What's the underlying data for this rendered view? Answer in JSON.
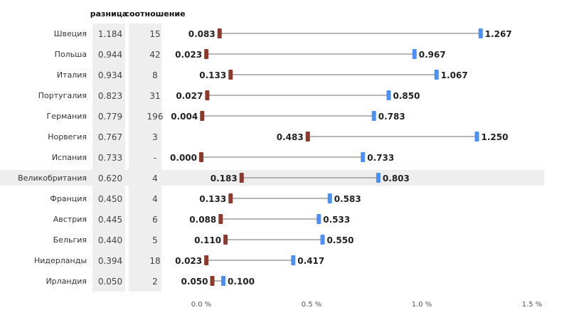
{
  "headers": {
    "diff": "разница",
    "ratio": "соотношение"
  },
  "colors": {
    "low": "#8b3a2e",
    "high": "#4f8ff0",
    "line": "#8a8a8a",
    "column_bg": "#eeeeee",
    "highlight_row": "#eeeeee"
  },
  "highlighted_row": "Великобритания",
  "chart_data": {
    "type": "dumbbell",
    "xlim": [
      0,
      1.5
    ],
    "ticks": [
      {
        "v": 0.0,
        "label": "0.0 %"
      },
      {
        "v": 0.5,
        "label": "0.5 %"
      },
      {
        "v": 1.0,
        "label": "1.0 %"
      },
      {
        "v": 1.5,
        "label": "1.5 %"
      }
    ],
    "rows": [
      {
        "country": "Швеция",
        "diff": "1.184",
        "ratio": "15",
        "low": 0.083,
        "low_label": "0.083",
        "high": 1.267,
        "high_label": "1.267"
      },
      {
        "country": "Польша",
        "diff": "0.944",
        "ratio": "42",
        "low": 0.023,
        "low_label": "0.023",
        "high": 0.967,
        "high_label": "0.967"
      },
      {
        "country": "Италия",
        "diff": "0.934",
        "ratio": "8",
        "low": 0.133,
        "low_label": "0.133",
        "high": 1.067,
        "high_label": "1.067"
      },
      {
        "country": "Португалия",
        "diff": "0.823",
        "ratio": "31",
        "low": 0.027,
        "low_label": "0.027",
        "high": 0.85,
        "high_label": "0.850"
      },
      {
        "country": "Германия",
        "diff": "0.779",
        "ratio": "196",
        "low": 0.004,
        "low_label": "0.004",
        "high": 0.783,
        "high_label": "0.783"
      },
      {
        "country": "Норвегия",
        "diff": "0.767",
        "ratio": "3",
        "low": 0.483,
        "low_label": "0.483",
        "high": 1.25,
        "high_label": "1.250"
      },
      {
        "country": "Испания",
        "diff": "0.733",
        "ratio": "-",
        "low": 0.0,
        "low_label": "0.000",
        "high": 0.733,
        "high_label": "0.733"
      },
      {
        "country": "Великобритания",
        "diff": "0.620",
        "ratio": "4",
        "low": 0.183,
        "low_label": "0.183",
        "high": 0.803,
        "high_label": "0.803"
      },
      {
        "country": "Франция",
        "diff": "0.450",
        "ratio": "4",
        "low": 0.133,
        "low_label": "0.133",
        "high": 0.583,
        "high_label": "0.583"
      },
      {
        "country": "Австрия",
        "diff": "0.445",
        "ratio": "6",
        "low": 0.088,
        "low_label": "0.088",
        "high": 0.533,
        "high_label": "0.533"
      },
      {
        "country": "Бельгия",
        "diff": "0.440",
        "ratio": "5",
        "low": 0.11,
        "low_label": "0.110",
        "high": 0.55,
        "high_label": "0.550"
      },
      {
        "country": "Нидерланды",
        "diff": "0.394",
        "ratio": "18",
        "low": 0.023,
        "low_label": "0.023",
        "high": 0.417,
        "high_label": "0.417"
      },
      {
        "country": "Ирландия",
        "diff": "0.050",
        "ratio": "2",
        "low": 0.05,
        "low_label": "0.050",
        "high": 0.1,
        "high_label": "0.100"
      }
    ]
  }
}
